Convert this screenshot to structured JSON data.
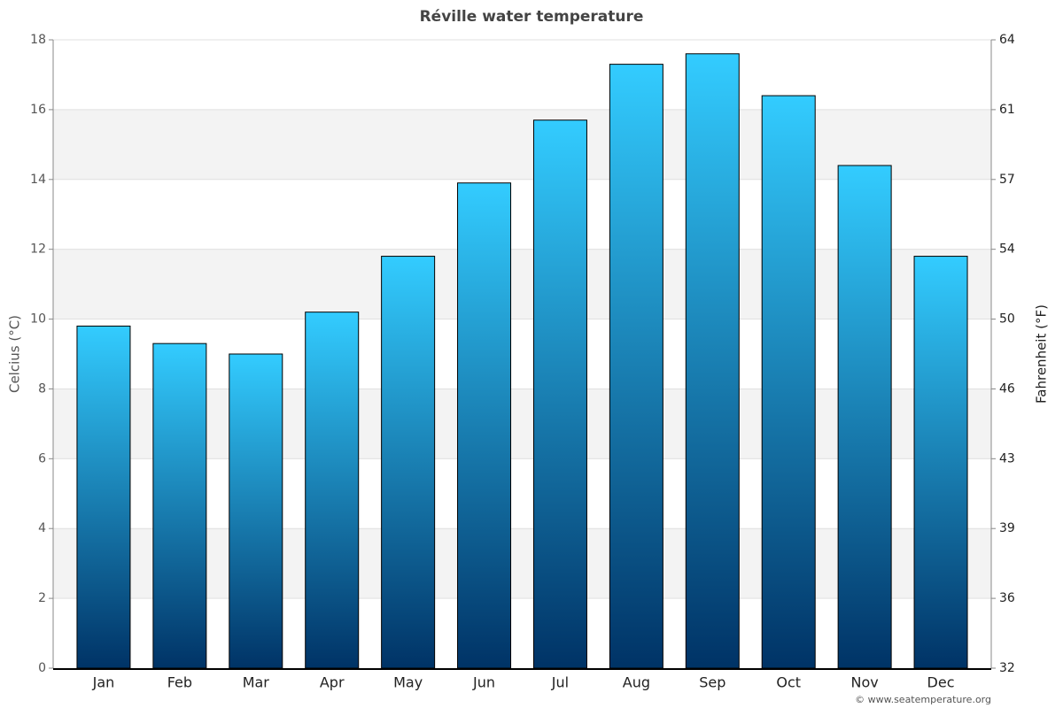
{
  "chart_data": {
    "type": "bar",
    "title": "Réville water temperature",
    "y_label": "Celcius (°C)",
    "y2_label": "Fahrenheit (°F)",
    "credit": "© www.seatemperature.org",
    "categories": [
      "Jan",
      "Feb",
      "Mar",
      "Apr",
      "May",
      "Jun",
      "Jul",
      "Aug",
      "Sep",
      "Oct",
      "Nov",
      "Dec"
    ],
    "values": [
      9.8,
      9.3,
      9.0,
      10.2,
      11.8,
      13.9,
      15.7,
      17.3,
      17.6,
      16.4,
      14.4,
      11.8
    ],
    "colors": [
      "#33ccff",
      "#003366"
    ],
    "ylim": [
      0,
      18
    ],
    "yticks": [
      0,
      2,
      4,
      6,
      8,
      10,
      12,
      14,
      16,
      18
    ],
    "y2lim": [
      32,
      64.4
    ],
    "y2ticks": [
      32,
      {
        "value": 35.6,
        "label": "36"
      },
      {
        "value": 39.2,
        "label": "39"
      },
      {
        "value": 42.8,
        "label": "43"
      },
      {
        "value": 46.4,
        "label": "46"
      },
      50,
      {
        "value": 53.6,
        "label": "54"
      },
      {
        "value": 57.2,
        "label": "57"
      },
      {
        "value": 60.8,
        "label": "61"
      },
      {
        "value": 64.4,
        "label": "64"
      }
    ],
    "grid": true
  }
}
